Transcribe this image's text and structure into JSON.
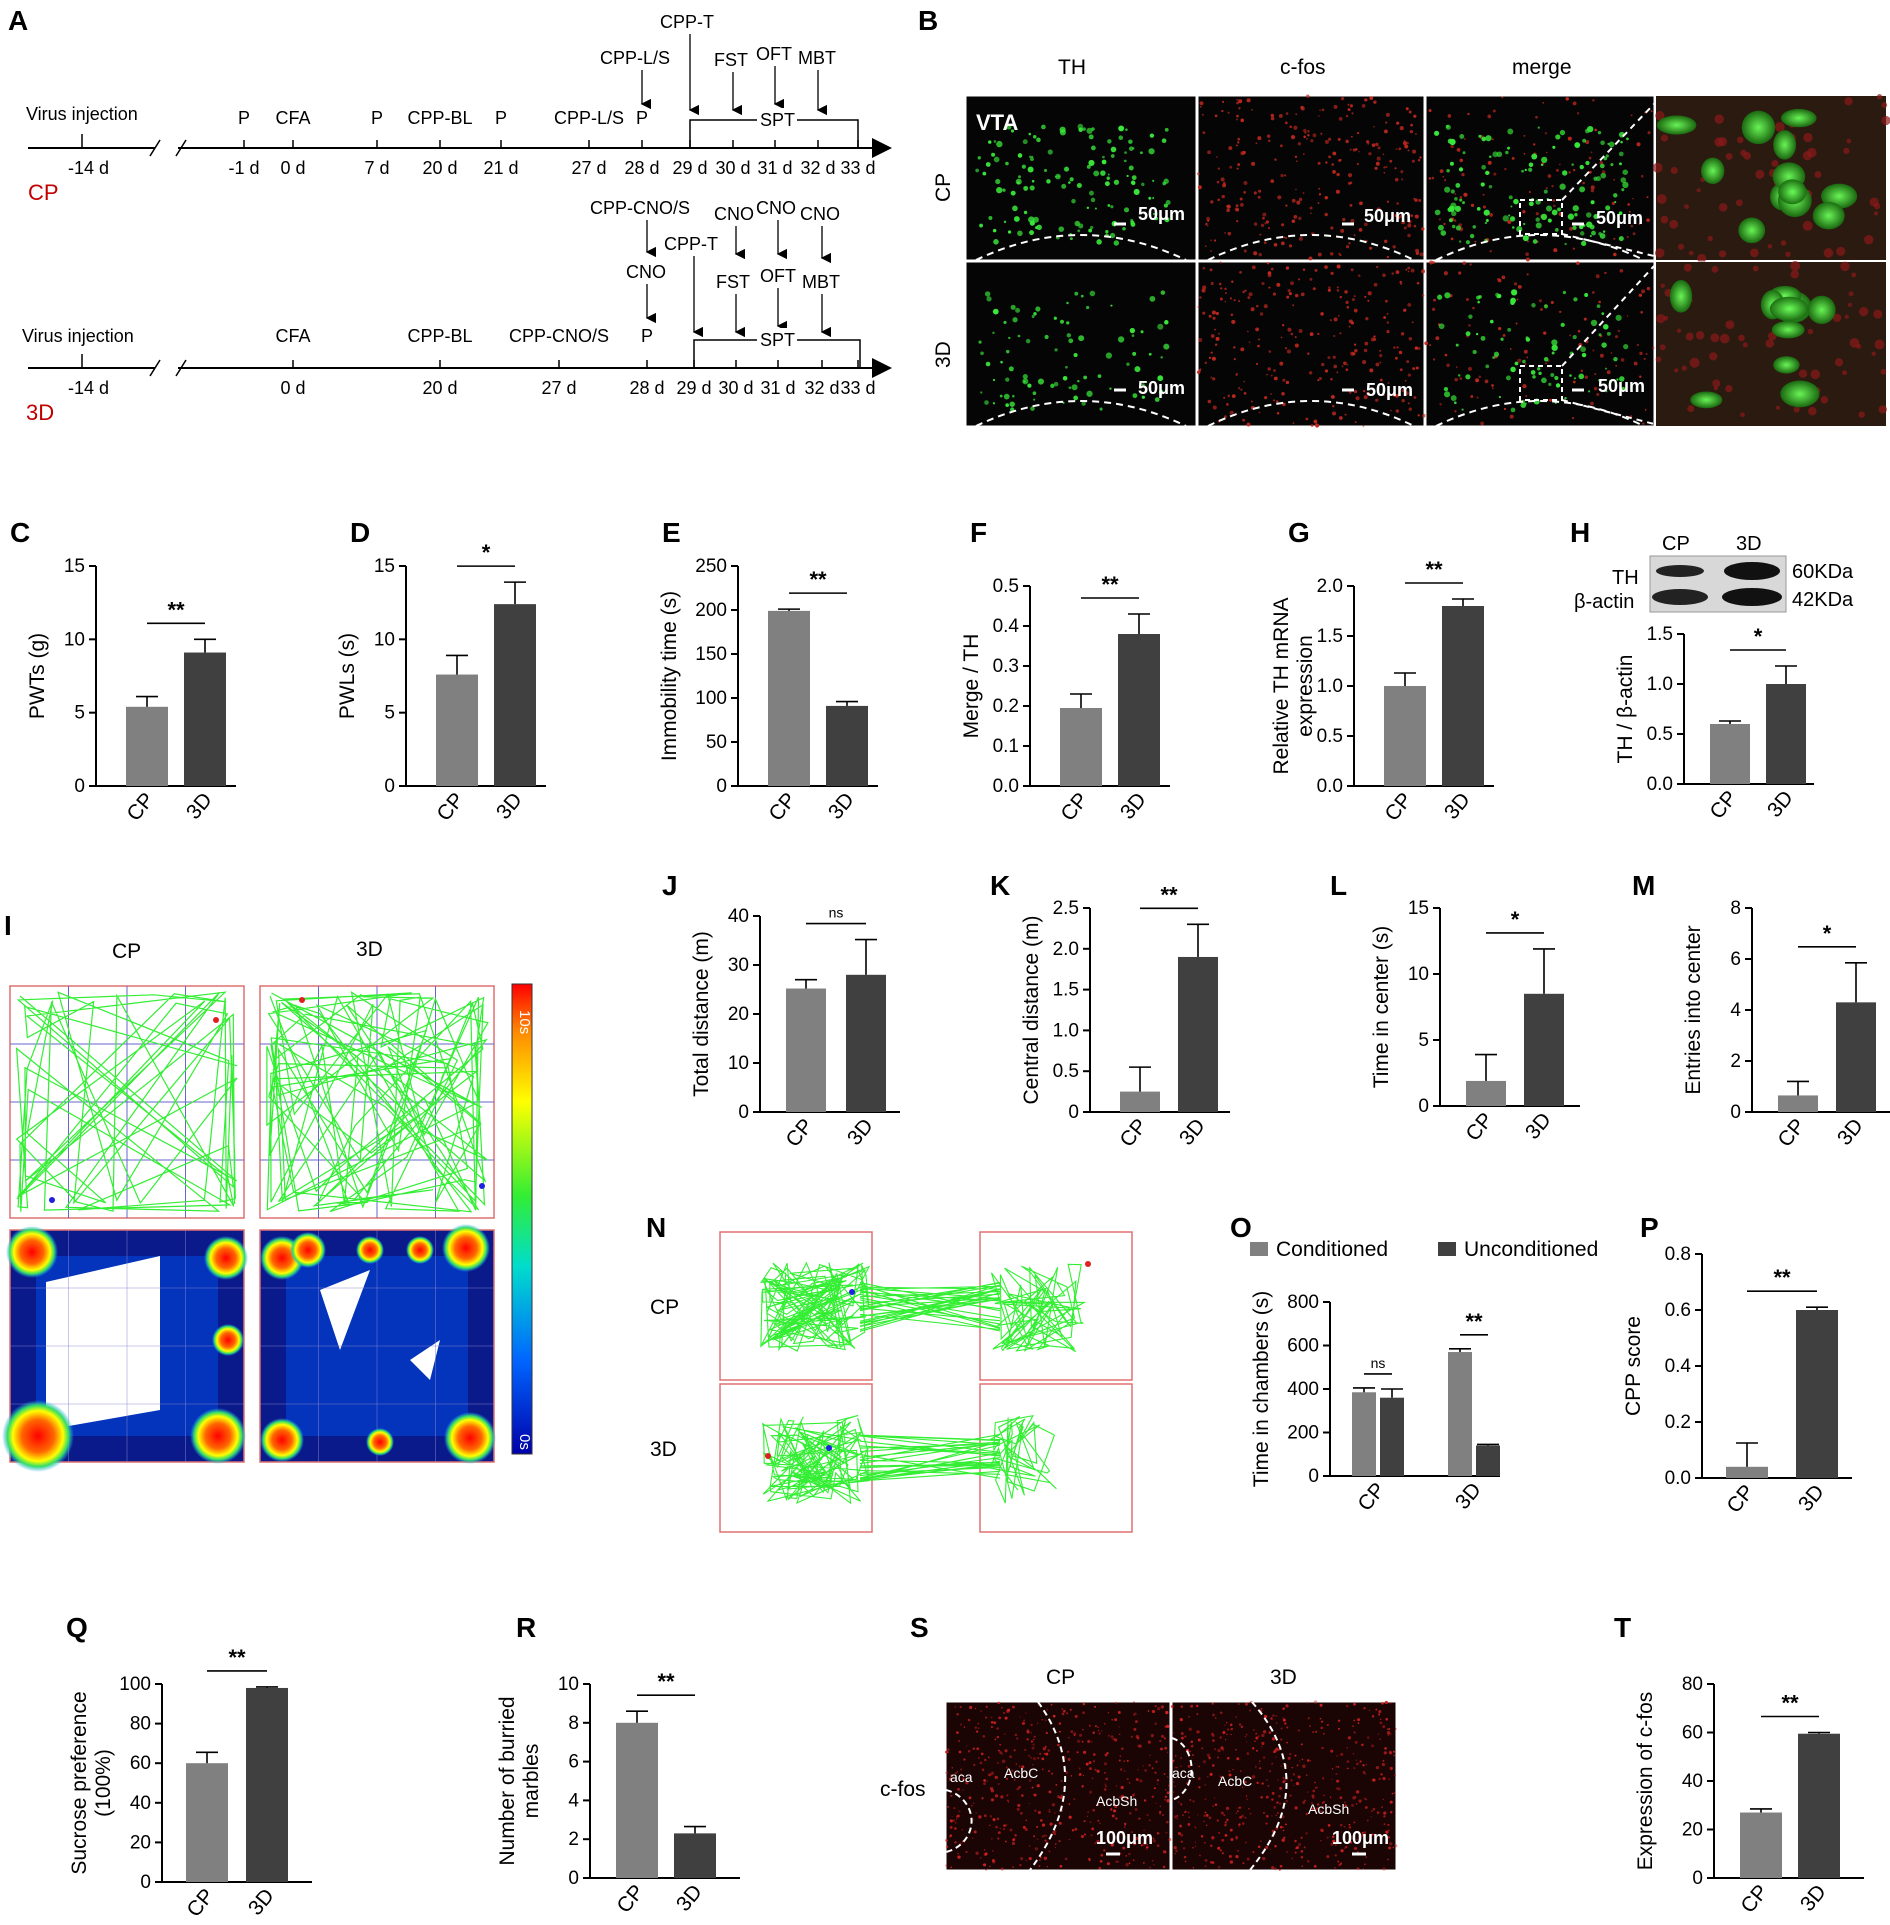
{
  "labels": {
    "A": "A",
    "B": "B",
    "C": "C",
    "D": "D",
    "E": "E",
    "F": "F",
    "G": "G",
    "H": "H",
    "I": "I",
    "J": "J",
    "K": "K",
    "L": "L",
    "M": "M",
    "N": "N",
    "O": "O",
    "P": "P",
    "Q": "Q",
    "R": "R",
    "S": "S",
    "T": "T"
  },
  "timeline": {
    "cp": {
      "group": "CP",
      "virus": "Virus injection",
      "d14": "-14 d",
      "ticks": [
        {
          "top": "P",
          "bottom": "-1 d"
        },
        {
          "top": "CFA",
          "bottom": "0 d"
        },
        {
          "top": "P",
          "bottom": "7 d"
        },
        {
          "top": "CPP-BL",
          "bottom": "20 d"
        },
        {
          "top": "P",
          "bottom": "21 d"
        },
        {
          "top": "CPP-L/S",
          "bottom": "27 d"
        },
        {
          "top": "P",
          "bottom": "28 d"
        },
        {
          "top": "",
          "bottom": "29 d"
        },
        {
          "top": "",
          "bottom": "30 d"
        },
        {
          "top": "",
          "bottom": "31 d"
        },
        {
          "top": "",
          "bottom": "32 d"
        },
        {
          "top": "",
          "bottom": "33 d"
        }
      ],
      "above": {
        "cppls": "CPP-L/S",
        "cppt": "CPP-T",
        "fst": "FST",
        "oft": "OFT",
        "mbt": "MBT",
        "spt": "SPT"
      }
    },
    "d3": {
      "group": "3D",
      "virus": "Virus injection",
      "d14": "-14 d",
      "ticks": [
        {
          "top": "CFA",
          "bottom": "0 d"
        },
        {
          "top": "CPP-BL",
          "bottom": "20 d"
        },
        {
          "top": "CPP-CNO/S",
          "bottom": "27 d"
        },
        {
          "top": "P",
          "bottom": "28 d"
        },
        {
          "top": "",
          "bottom": "29 d"
        },
        {
          "top": "",
          "bottom": "30 d"
        },
        {
          "top": "",
          "bottom": "31 d"
        },
        {
          "top": "",
          "bottom": "32 d"
        },
        {
          "top": "",
          "bottom": "33 d"
        }
      ],
      "above": {
        "cppcnos": "CPP-CNO/S",
        "cno": "CNO",
        "cppt": "CPP-T",
        "cno1": "CNO",
        "cno2": "CNO",
        "cno3": "CNO",
        "fst": "FST",
        "oft": "OFT",
        "mbt": "MBT",
        "spt": "SPT"
      }
    }
  },
  "panelB": {
    "cols": [
      "TH",
      "c-fos",
      "merge"
    ],
    "rows": [
      "CP",
      "3D"
    ],
    "region": "VTA",
    "scale": "50μm"
  },
  "panelH_blot": {
    "cp": "CP",
    "d3": "3D",
    "th": "TH",
    "actin": "β-actin",
    "kda60": "60KDa",
    "kda42": "42KDa"
  },
  "panelI": {
    "cp": "CP",
    "d3": "3D",
    "scale_top": "10s",
    "scale_bottom": "0s"
  },
  "panelN": {
    "cp": "CP",
    "d3": "3D"
  },
  "panelS": {
    "cp": "CP",
    "d3": "3D",
    "stain": "c-fos",
    "aca": "aca",
    "acbc": "AcbC",
    "acbsh": "AcbSh",
    "scale": "100μm"
  },
  "chart_data": [
    {
      "id": "C",
      "type": "bar",
      "categories": [
        "CP",
        "3D"
      ],
      "values": [
        5.4,
        9.1
      ],
      "errors": [
        0.7,
        0.9
      ],
      "ylabel": "PWTs (g)",
      "ylim": [
        0,
        15
      ],
      "yticks": [
        0,
        5,
        10,
        15
      ],
      "tick_labels": [
        "0",
        "5",
        "10",
        "15"
      ],
      "sig": "**"
    },
    {
      "id": "D",
      "type": "bar",
      "categories": [
        "CP",
        "3D"
      ],
      "values": [
        7.6,
        12.4
      ],
      "errors": [
        1.3,
        1.5
      ],
      "ylabel": "PWLs (s)",
      "ylim": [
        0,
        15
      ],
      "yticks": [
        0,
        5,
        10,
        15
      ],
      "tick_labels": [
        "0",
        "5",
        "10",
        "15"
      ],
      "sig": "*"
    },
    {
      "id": "E",
      "type": "bar",
      "categories": [
        "CP",
        "3D"
      ],
      "values": [
        199,
        91
      ],
      "errors": [
        2,
        5
      ],
      "ylabel": "Immobility time (s)",
      "ylim": [
        0,
        250
      ],
      "yticks": [
        0,
        50,
        100,
        150,
        200,
        250
      ],
      "tick_labels": [
        "0",
        "50",
        "100",
        "150",
        "200",
        "250"
      ],
      "sig": "**"
    },
    {
      "id": "F",
      "type": "bar",
      "categories": [
        "CP",
        "3D"
      ],
      "values": [
        0.195,
        0.38
      ],
      "errors": [
        0.035,
        0.05
      ],
      "ylabel": "Merge / TH",
      "ylim": [
        0,
        0.5
      ],
      "yticks": [
        0,
        0.1,
        0.2,
        0.3,
        0.4,
        0.5
      ],
      "tick_labels": [
        "0.0",
        "0.1",
        "0.2",
        "0.3",
        "0.4",
        "0.5"
      ],
      "sig": "**"
    },
    {
      "id": "G",
      "type": "bar",
      "categories": [
        "CP",
        "3D"
      ],
      "values": [
        1.0,
        1.8
      ],
      "errors": [
        0.13,
        0.07
      ],
      "ylabel": [
        "Relative TH mRNA",
        "expression"
      ],
      "ylim": [
        0,
        2
      ],
      "yticks": [
        0,
        0.5,
        1,
        1.5,
        2
      ],
      "tick_labels": [
        "0.0",
        "0.5",
        "1.0",
        "1.5",
        "2.0"
      ],
      "sig": "**"
    },
    {
      "id": "H",
      "type": "bar",
      "categories": [
        "CP",
        "3D"
      ],
      "values": [
        0.6,
        1.0
      ],
      "errors": [
        0.03,
        0.18
      ],
      "ylabel": "TH / β-actin",
      "ylim": [
        0,
        1.5
      ],
      "yticks": [
        0,
        0.5,
        1,
        1.5
      ],
      "tick_labels": [
        "0.0",
        "0.5",
        "1.0",
        "1.5"
      ],
      "sig": "*"
    },
    {
      "id": "J",
      "type": "bar",
      "categories": [
        "CP",
        "3D"
      ],
      "values": [
        25.2,
        28.0
      ],
      "errors": [
        1.8,
        7.2
      ],
      "ylabel": "Total distance (m)",
      "ylim": [
        0,
        40
      ],
      "yticks": [
        0,
        10,
        20,
        30,
        40
      ],
      "tick_labels": [
        "0",
        "10",
        "20",
        "30",
        "40"
      ],
      "sig": "ns"
    },
    {
      "id": "K",
      "type": "bar",
      "categories": [
        "CP",
        "3D"
      ],
      "values": [
        0.25,
        1.9
      ],
      "errors": [
        0.3,
        0.4
      ],
      "ylabel": "Central distance (m)",
      "ylim": [
        0,
        2.5
      ],
      "yticks": [
        0,
        0.5,
        1,
        1.5,
        2,
        2.5
      ],
      "tick_labels": [
        "0",
        "0.5",
        "1.0",
        "1.5",
        "2.0",
        "2.5"
      ],
      "sig": "**"
    },
    {
      "id": "L",
      "type": "bar",
      "categories": [
        "CP",
        "3D"
      ],
      "values": [
        1.9,
        8.5
      ],
      "errors": [
        2.0,
        3.4
      ],
      "ylabel": "Time in center (s)",
      "ylim": [
        0,
        15
      ],
      "yticks": [
        0,
        5,
        10,
        15
      ],
      "tick_labels": [
        "0",
        "5",
        "10",
        "15"
      ],
      "sig": "*"
    },
    {
      "id": "M",
      "type": "bar",
      "categories": [
        "CP",
        "3D"
      ],
      "values": [
        0.65,
        4.3
      ],
      "errors": [
        0.55,
        1.55
      ],
      "ylabel": "Entries into center",
      "ylim": [
        0,
        8
      ],
      "yticks": [
        0,
        2,
        4,
        6,
        8
      ],
      "tick_labels": [
        "0",
        "2",
        "4",
        "6",
        "8"
      ],
      "sig": "*"
    },
    {
      "id": "O",
      "type": "bar",
      "categories": [
        "CP",
        "3D"
      ],
      "series": [
        {
          "name": "Conditioned",
          "values": [
            385,
            570
          ],
          "errors": [
            20,
            15
          ]
        },
        {
          "name": "Unconditioned",
          "values": [
            360,
            140
          ],
          "errors": [
            40,
            5
          ]
        }
      ],
      "ylabel": "Time in chambers (s)",
      "ylim": [
        0,
        800
      ],
      "yticks": [
        0,
        200,
        400,
        600,
        800
      ],
      "tick_labels": [
        "0",
        "200",
        "400",
        "600",
        "800"
      ],
      "sig": [
        "ns",
        "**"
      ]
    },
    {
      "id": "P",
      "type": "bar",
      "categories": [
        "CP",
        "3D"
      ],
      "values": [
        0.04,
        0.6
      ],
      "errors": [
        0.085,
        0.01
      ],
      "ylabel": "CPP score",
      "ylim": [
        0,
        0.8
      ],
      "yticks": [
        0,
        0.2,
        0.4,
        0.6,
        0.8
      ],
      "tick_labels": [
        "0.0",
        "0.2",
        "0.4",
        "0.6",
        "0.8"
      ],
      "sig": "**"
    },
    {
      "id": "Q",
      "type": "bar",
      "categories": [
        "CP",
        "3D"
      ],
      "values": [
        60,
        98
      ],
      "errors": [
        5.5,
        0.5
      ],
      "ylabel": [
        "Sucrose preference",
        "(100%)"
      ],
      "ylim": [
        0,
        100
      ],
      "yticks": [
        0,
        20,
        40,
        60,
        80,
        100
      ],
      "tick_labels": [
        "0",
        "20",
        "40",
        "60",
        "80",
        "100"
      ],
      "sig": "**"
    },
    {
      "id": "R",
      "type": "bar",
      "categories": [
        "CP",
        "3D"
      ],
      "values": [
        8.0,
        2.3
      ],
      "errors": [
        0.6,
        0.35
      ],
      "ylabel": [
        "Number of burried",
        "marbles"
      ],
      "ylim": [
        0,
        10
      ],
      "yticks": [
        0,
        2,
        4,
        6,
        8,
        10
      ],
      "tick_labels": [
        "0",
        "2",
        "4",
        "6",
        "8",
        "10"
      ],
      "sig": "**"
    },
    {
      "id": "T",
      "type": "bar",
      "categories": [
        "CP",
        "3D"
      ],
      "values": [
        27,
        59.5
      ],
      "errors": [
        1.5,
        0.5
      ],
      "ylabel": "Expression of c-fos",
      "ylim": [
        0,
        80
      ],
      "yticks": [
        0,
        20,
        40,
        60,
        80
      ],
      "tick_labels": [
        "0",
        "20",
        "40",
        "60",
        "80"
      ],
      "sig": "**"
    }
  ],
  "colors": {
    "cp": "#808080",
    "d3": "#404040",
    "track": "#33ee33",
    "red": "#c00000"
  }
}
